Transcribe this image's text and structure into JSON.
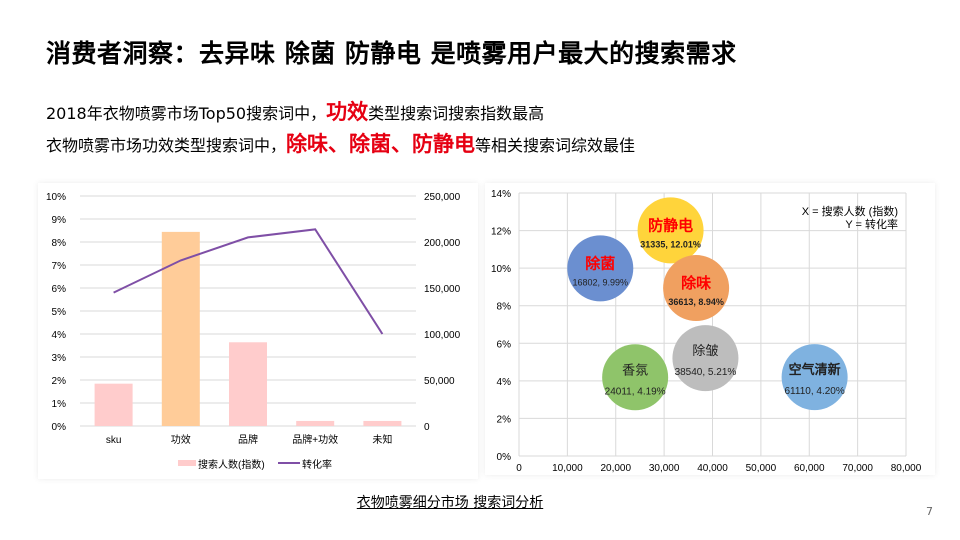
{
  "title": "消费者洞察：去异味 除菌 防静电 是喷雾用户最大的搜索需求",
  "line1": {
    "pre": "2018年衣物喷雾市场Top50搜索词中，",
    "highlight": "功效",
    "post": "类型搜索词搜索指数最高"
  },
  "line2": {
    "pre": "衣物喷雾市场功效类型搜索词中，",
    "highlight": "除味、除菌、防静电",
    "post": "等相关搜索词综效最佳"
  },
  "caption": "衣物喷雾细分市场 搜索词分析",
  "page_number": "7",
  "chart_data": [
    {
      "type": "bar+line",
      "categories": [
        "sku",
        "功效",
        "品牌",
        "品牌+功效",
        "未知"
      ],
      "series": [
        {
          "name": "搜索人数(指数)",
          "type": "bar",
          "axis": "right",
          "values": [
            46000,
            211000,
            91000,
            5500,
            5500
          ],
          "colors": [
            "#ffcccc",
            "#ffcc99",
            "#ffcccc",
            "#ffcccc",
            "#ffcccc"
          ]
        },
        {
          "name": "转化率",
          "type": "line",
          "axis": "left",
          "values": [
            5.8,
            7.2,
            8.2,
            8.55,
            4.0
          ],
          "color": "#7f4fa6"
        }
      ],
      "left_ticks": [
        "0%",
        "1%",
        "2%",
        "3%",
        "4%",
        "5%",
        "6%",
        "7%",
        "8%",
        "9%",
        "10%"
      ],
      "right_ticks": [
        "0",
        "50,000",
        "100,000",
        "150,000",
        "200,000",
        "250,000"
      ],
      "ylim_left": [
        0,
        10
      ],
      "ylim_right": [
        0,
        250000
      ],
      "grid": true,
      "legend": "bottom"
    },
    {
      "type": "bubble",
      "x_ticks": [
        "0",
        "10,000",
        "20,000",
        "30,000",
        "40,000",
        "50,000",
        "60,000",
        "70,000",
        "80,000"
      ],
      "y_ticks": [
        "0%",
        "2%",
        "4%",
        "6%",
        "8%",
        "10%",
        "12%",
        "14%"
      ],
      "xlim": [
        0,
        80000
      ],
      "ylim": [
        0,
        14
      ],
      "grid": true,
      "annotation": [
        "X = 搜索人数 (指数)",
        "Y = 转化率"
      ],
      "points": [
        {
          "name": "防静电",
          "x": 31335,
          "y": 12.01,
          "label": "31335, 12.01%",
          "color": "#ffd43b",
          "highlight": true
        },
        {
          "name": "除菌",
          "x": 16802,
          "y": 9.99,
          "label": "16802, 9.99%",
          "color": "#6b8fd0",
          "highlight": true
        },
        {
          "name": "除味",
          "x": 36613,
          "y": 8.94,
          "label": "36613, 8.94%",
          "color": "#f0a060",
          "highlight": true
        },
        {
          "name": "香氛",
          "x": 24011,
          "y": 4.19,
          "label": "24011, 4.19%",
          "color": "#8fc46a",
          "highlight": false
        },
        {
          "name": "除皱",
          "x": 38540,
          "y": 5.21,
          "label": "38540, 5.21%",
          "color": "#bdbdbd",
          "highlight": false
        },
        {
          "name": "空气清新",
          "x": 61110,
          "y": 4.2,
          "label": "61110, 4.20%",
          "color": "#7fb2e0",
          "highlight": false
        }
      ]
    }
  ]
}
